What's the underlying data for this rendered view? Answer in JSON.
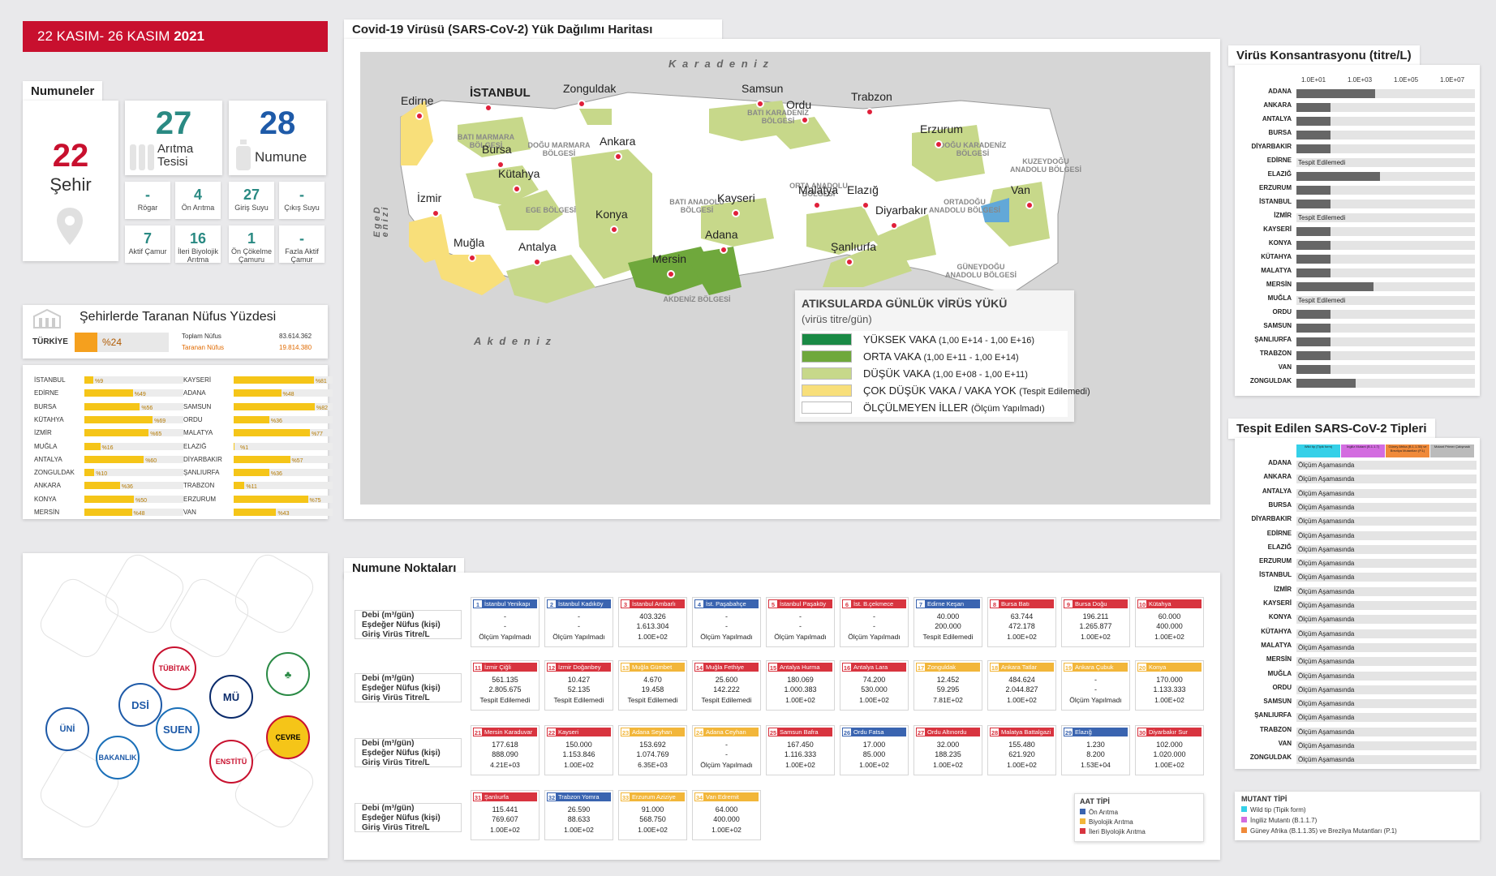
{
  "banner": {
    "date_text": "22 KASIM- 26 KASIM ",
    "year": "2021"
  },
  "samples": {
    "header": "Numuneler",
    "city_count": "22",
    "city_label": "Şehir",
    "plants_count": "27",
    "plants_label_1": "Arıtma",
    "plants_label_2": "Tesisi",
    "sample_count": "28",
    "sample_label": "Numune",
    "boxes": [
      {
        "value": "-",
        "label": "Rögar"
      },
      {
        "value": "4",
        "label": "Ön Arıtma"
      },
      {
        "value": "27",
        "label": "Giriş Suyu"
      },
      {
        "value": "-",
        "label": "Çıkış Suyu"
      },
      {
        "value": "7",
        "label": "Aktif Çamur"
      },
      {
        "value": "16",
        "label": "İleri Biyolojik Arıtma"
      },
      {
        "value": "1",
        "label": "Ön Çökelme Çamuru"
      },
      {
        "value": "-",
        "label": "Fazla Aktif Çamur"
      }
    ]
  },
  "population": {
    "title": "Şehirlerde Taranan Nüfus Yüzdesi",
    "turkiye_label": "TÜRKİYE",
    "turkiye_pct": "%24",
    "total_label": "Toplam Nüfus",
    "total_value": "83.614.362",
    "scanned_label": "Taranan Nüfus",
    "scanned_value": "19.814.380",
    "turkiye_fraction": 0.24,
    "left": [
      {
        "name": "İSTANBUL",
        "pct": "%9",
        "v": 9
      },
      {
        "name": "EDİRNE",
        "pct": "%49",
        "v": 49
      },
      {
        "name": "BURSA",
        "pct": "%56",
        "v": 56
      },
      {
        "name": "KÜTAHYA",
        "pct": "%69",
        "v": 69
      },
      {
        "name": "İZMİR",
        "pct": "%65",
        "v": 65
      },
      {
        "name": "MUĞLA",
        "pct": "%16",
        "v": 16
      },
      {
        "name": "ANTALYA",
        "pct": "%60",
        "v": 60
      },
      {
        "name": "ZONGULDAK",
        "pct": "%10",
        "v": 10
      },
      {
        "name": "ANKARA",
        "pct": "%36",
        "v": 36
      },
      {
        "name": "KONYA",
        "pct": "%50",
        "v": 50
      },
      {
        "name": "MERSİN",
        "pct": "%48",
        "v": 48
      }
    ],
    "right": [
      {
        "name": "KAYSERİ",
        "pct": "%81",
        "v": 81
      },
      {
        "name": "ADANA",
        "pct": "%48",
        "v": 48
      },
      {
        "name": "SAMSUN",
        "pct": "%82",
        "v": 82
      },
      {
        "name": "ORDU",
        "pct": "%36",
        "v": 36
      },
      {
        "name": "MALATYA",
        "pct": "%77",
        "v": 77
      },
      {
        "name": "ELAZIĞ",
        "pct": "%1",
        "v": 1
      },
      {
        "name": "DİYARBAKIR",
        "pct": "%57",
        "v": 57
      },
      {
        "name": "ŞANLIURFA",
        "pct": "%36",
        "v": 36
      },
      {
        "name": "TRABZON",
        "pct": "%11",
        "v": 11
      },
      {
        "name": "ERZURUM",
        "pct": "%75",
        "v": 75
      },
      {
        "name": "VAN",
        "pct": "%43",
        "v": 43
      }
    ]
  },
  "logos": [
    "DSİ",
    "SUEN",
    "MÜ",
    "TÜBİTAK",
    "ÜNİ",
    "BAKANLIK",
    "ENSTİTÜ",
    "ÇEVRE"
  ],
  "map": {
    "title": "Covid-19 Virüsü (SARS-CoV-2) Yük Dağılımı Haritası",
    "seas": {
      "north": "K a r a d e n i z",
      "south": "A k d e n i z",
      "west": "E g e   D e n i z i"
    },
    "regions": [
      "BATI MARMARA BÖLGESİ",
      "DOĞU MARMARA BÖLGESİ",
      "BATI KARADENİZ BÖLGESİ",
      "DOĞU KARADENİZ BÖLGESİ",
      "EGE BÖLGESİ",
      "BATI ANADOLU BÖLGESİ",
      "ORTA ANADOLU BÖLGESİ",
      "ORTADOĞU ANADOLU BÖLGESİ",
      "KUZEYDOĞU ANADOLU BÖLGESİ",
      "GÜNEYDOĞU ANADOLU BÖLGESİ",
      "AKDENİZ BÖLGESİ"
    ],
    "cities": [
      "Edirne",
      "İSTANBUL",
      "Zonguldak",
      "Samsun",
      "Trabzon",
      "Ordu",
      "Erzurum",
      "Bursa",
      "Kütahya",
      "Ankara",
      "Konya",
      "Kayseri",
      "Malatya",
      "Elazığ",
      "Diyarbakır",
      "Van",
      "İzmir",
      "Muğla",
      "Antalya",
      "Mersin",
      "Adana",
      "Şanlıurfa"
    ],
    "legend": {
      "title": "ATIKSULARDA GÜNLÜK VİRÜS YÜKÜ",
      "subtitle": "(virüs titre/gün)",
      "items": [
        {
          "label": "YÜKSEK VAKA",
          "range": "(1,00 E+14 - 1,00 E+16)",
          "color": "#1a8a45"
        },
        {
          "label": "ORTA VAKA",
          "range": "(1,00 E+11 - 1,00 E+14)",
          "color": "#6fa83c"
        },
        {
          "label": "DÜŞÜK VAKA",
          "range": "(1,00 E+08 - 1,00 E+11)",
          "color": "#c7d88a"
        },
        {
          "label": "ÇOK DÜŞÜK VAKA / VAKA YOK",
          "range": "(Tespit Edilemedi)",
          "color": "#f8df7a"
        },
        {
          "label": "ÖLÇÜLMEYEN İLLER",
          "range": "(Ölçüm Yapılmadı)",
          "color": "#ffffff"
        }
      ]
    }
  },
  "concentration": {
    "title": "Virüs Konsantrasyonu (titre/L)",
    "ticks": [
      "1.0E+01",
      "1.0E+03",
      "1.0E+05",
      "1.0E+07"
    ],
    "rows": [
      {
        "name": "ADANA",
        "fraction": 0.44,
        "text": ""
      },
      {
        "name": "ANKARA",
        "fraction": 0.19,
        "text": ""
      },
      {
        "name": "ANTALYA",
        "fraction": 0.19,
        "text": ""
      },
      {
        "name": "BURSA",
        "fraction": 0.19,
        "text": ""
      },
      {
        "name": "DİYARBAKIR",
        "fraction": 0.19,
        "text": ""
      },
      {
        "name": "EDİRNE",
        "fraction": 0,
        "text": "Tespit Edilemedi"
      },
      {
        "name": "ELAZIĞ",
        "fraction": 0.47,
        "text": ""
      },
      {
        "name": "ERZURUM",
        "fraction": 0.19,
        "text": ""
      },
      {
        "name": "İSTANBUL",
        "fraction": 0.19,
        "text": ""
      },
      {
        "name": "İZMİR",
        "fraction": 0,
        "text": "Tespit Edilemedi"
      },
      {
        "name": "KAYSERİ",
        "fraction": 0.19,
        "text": ""
      },
      {
        "name": "KONYA",
        "fraction": 0.19,
        "text": ""
      },
      {
        "name": "KÜTAHYA",
        "fraction": 0.19,
        "text": ""
      },
      {
        "name": "MALATYA",
        "fraction": 0.19,
        "text": ""
      },
      {
        "name": "MERSİN",
        "fraction": 0.43,
        "text": ""
      },
      {
        "name": "MUĞLA",
        "fraction": 0,
        "text": "Tespit Edilemedi"
      },
      {
        "name": "ORDU",
        "fraction": 0.19,
        "text": ""
      },
      {
        "name": "SAMSUN",
        "fraction": 0.19,
        "text": ""
      },
      {
        "name": "ŞANLIURFA",
        "fraction": 0.19,
        "text": ""
      },
      {
        "name": "TRABZON",
        "fraction": 0.19,
        "text": ""
      },
      {
        "name": "VAN",
        "fraction": 0.19,
        "text": ""
      },
      {
        "name": "ZONGULDAK",
        "fraction": 0.33,
        "text": ""
      }
    ]
  },
  "variants": {
    "title": "Tespit Edilen SARS-CoV-2 Tipleri",
    "cols": [
      {
        "label": "Wild tip (Tipik form)",
        "color": "#35d0e8"
      },
      {
        "label": "İngiliz Mutant (B.1.1.7)",
        "color": "#d36ce0"
      },
      {
        "label": "Güney Afrika (B.1.1.35) ve Brezilya Mutantları (P.1)",
        "color": "#f08a3a"
      },
      {
        "label": "Mutant Primer Çalışmadı",
        "color": "#bbbbbb"
      }
    ],
    "status": "Ölçüm Aşamasında",
    "rows": [
      "ADANA",
      "ANKARA",
      "ANTALYA",
      "BURSA",
      "DİYARBAKIR",
      "EDİRNE",
      "ELAZIĞ",
      "ERZURUM",
      "İSTANBUL",
      "İZMİR",
      "KAYSERİ",
      "KONYA",
      "KÜTAHYA",
      "MALATYA",
      "MERSİN",
      "MUĞLA",
      "ORDU",
      "SAMSUN",
      "ŞANLIURFA",
      "TRABZON",
      "VAN",
      "ZONGULDAK"
    ],
    "legend_title": "MUTANT TİPİ",
    "legend": [
      "Wild tip (Tipik form)",
      "İngiliz Mutantı (B.1.1.7)",
      "Güney Afrika (B.1.1.35) ve Brezilya Mutantları (P.1)"
    ]
  },
  "stations": {
    "title": "Numune Noktaları",
    "row_labels": [
      "Debi (m³/gün)",
      "Eşdeğer Nüfus (kişi)",
      "Giriş Virüs Titre/L"
    ],
    "types": {
      "title": "AAT TİPİ",
      "items": [
        {
          "label": "Ön Arıtma",
          "color": "#3a64b0"
        },
        {
          "label": "Biyolojik Arıtma",
          "color": "#f2b63a"
        },
        {
          "label": "İleri Biyolojik Arıtma",
          "color": "#d8343f"
        }
      ]
    },
    "items": [
      {
        "no": "1",
        "name": "İstanbul Yenikapı",
        "type": "b",
        "flow": "-",
        "pop": "-",
        "titre": "Ölçüm Yapılmadı"
      },
      {
        "no": "2",
        "name": "İstanbul Kadıköy",
        "type": "b",
        "flow": "-",
        "pop": "-",
        "titre": "Ölçüm Yapılmadı"
      },
      {
        "no": "3",
        "name": "İstanbul Ambarlı",
        "type": "r",
        "flow": "403.326",
        "pop": "1.613.304",
        "titre": "1.00E+02"
      },
      {
        "no": "4",
        "name": "İst. Paşabahçe",
        "type": "b",
        "flow": "-",
        "pop": "-",
        "titre": "Ölçüm Yapılmadı"
      },
      {
        "no": "5",
        "name": "İstanbul Paşaköy",
        "type": "r",
        "flow": "-",
        "pop": "-",
        "titre": "Ölçüm Yapılmadı"
      },
      {
        "no": "6",
        "name": "İst. B.çekmece",
        "type": "r",
        "flow": "-",
        "pop": "-",
        "titre": "Ölçüm Yapılmadı"
      },
      {
        "no": "7",
        "name": "Edirne Keşan",
        "type": "b",
        "flow": "40.000",
        "pop": "200.000",
        "titre": "Tespit Edilemedi"
      },
      {
        "no": "8",
        "name": "Bursa Batı",
        "type": "r",
        "flow": "63.744",
        "pop": "472.178",
        "titre": "1.00E+02"
      },
      {
        "no": "9",
        "name": "Bursa Doğu",
        "type": "r",
        "flow": "196.211",
        "pop": "1.265.877",
        "titre": "1.00E+02"
      },
      {
        "no": "10",
        "name": "Kütahya",
        "type": "r",
        "flow": "60.000",
        "pop": "400.000",
        "titre": "1.00E+02"
      },
      {
        "no": "11",
        "name": "İzmir Çiğli",
        "type": "r",
        "flow": "561.135",
        "pop": "2.805.675",
        "titre": "Tespit Edilemedi"
      },
      {
        "no": "12",
        "name": "İzmir Doğanbey",
        "type": "r",
        "flow": "10.427",
        "pop": "52.135",
        "titre": "Tespit Edilemedi"
      },
      {
        "no": "13",
        "name": "Muğla Gümbet",
        "type": "y",
        "flow": "4.670",
        "pop": "19.458",
        "titre": "Tespit Edilemedi"
      },
      {
        "no": "14",
        "name": "Muğla Fethiye",
        "type": "r",
        "flow": "25.600",
        "pop": "142.222",
        "titre": "Tespit Edilemedi"
      },
      {
        "no": "15",
        "name": "Antalya Hurma",
        "type": "r",
        "flow": "180.069",
        "pop": "1.000.383",
        "titre": "1.00E+02"
      },
      {
        "no": "16",
        "name": "Antalya Lara",
        "type": "r",
        "flow": "74.200",
        "pop": "530.000",
        "titre": "1.00E+02"
      },
      {
        "no": "17",
        "name": "Zonguldak",
        "type": "y",
        "flow": "12.452",
        "pop": "59.295",
        "titre": "7.81E+02"
      },
      {
        "no": "18",
        "name": "Ankara Tatlar",
        "type": "y",
        "flow": "484.624",
        "pop": "2.044.827",
        "titre": "1.00E+02"
      },
      {
        "no": "19",
        "name": "Ankara Çubuk",
        "type": "y",
        "flow": "-",
        "pop": "-",
        "titre": "Ölçüm Yapılmadı"
      },
      {
        "no": "20",
        "name": "Konya",
        "type": "y",
        "flow": "170.000",
        "pop": "1.133.333",
        "titre": "1.00E+02"
      },
      {
        "no": "21",
        "name": "Mersin Karaduvar",
        "type": "r",
        "flow": "177.618",
        "pop": "888.090",
        "titre": "4.21E+03"
      },
      {
        "no": "22",
        "name": "Kayseri",
        "type": "r",
        "flow": "150.000",
        "pop": "1.153.846",
        "titre": "1.00E+02"
      },
      {
        "no": "23",
        "name": "Adana Seyhan",
        "type": "y",
        "flow": "153.692",
        "pop": "1.074.769",
        "titre": "6.35E+03"
      },
      {
        "no": "24",
        "name": "Adana Ceyhan",
        "type": "y",
        "flow": "-",
        "pop": "-",
        "titre": "Ölçüm Yapılmadı"
      },
      {
        "no": "25",
        "name": "Samsun Bafra",
        "type": "r",
        "flow": "167.450",
        "pop": "1.116.333",
        "titre": "1.00E+02"
      },
      {
        "no": "26",
        "name": "Ordu Fatsa",
        "type": "b",
        "flow": "17.000",
        "pop": "85.000",
        "titre": "1.00E+02"
      },
      {
        "no": "27",
        "name": "Ordu Altınordu",
        "type": "r",
        "flow": "32.000",
        "pop": "188.235",
        "titre": "1.00E+02"
      },
      {
        "no": "28",
        "name": "Malatya Battalgazi",
        "type": "r",
        "flow": "155.480",
        "pop": "621.920",
        "titre": "1.00E+02"
      },
      {
        "no": "29",
        "name": "Elazığ",
        "type": "b",
        "flow": "1.230",
        "pop": "8.200",
        "titre": "1.53E+04"
      },
      {
        "no": "30",
        "name": "Diyarbakır Sur",
        "type": "r",
        "flow": "102.000",
        "pop": "1.020.000",
        "titre": "1.00E+02"
      },
      {
        "no": "31",
        "name": "Şanlıurfa",
        "type": "r",
        "flow": "115.441",
        "pop": "769.607",
        "titre": "1.00E+02"
      },
      {
        "no": "32",
        "name": "Trabzon Yomra",
        "type": "b",
        "flow": "26.590",
        "pop": "88.633",
        "titre": "1.00E+02"
      },
      {
        "no": "33",
        "name": "Erzurum Aziziye",
        "type": "y",
        "flow": "91.000",
        "pop": "568.750",
        "titre": "1.00E+02"
      },
      {
        "no": "34",
        "name": "Van Edremit",
        "type": "y",
        "flow": "64.000",
        "pop": "400.000",
        "titre": "1.00E+02"
      }
    ]
  }
}
